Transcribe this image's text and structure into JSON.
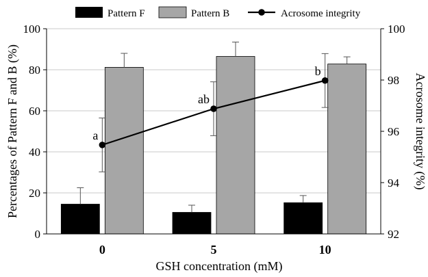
{
  "chart_data": {
    "type": "bar",
    "categories": [
      "0",
      "5",
      "10"
    ],
    "series": [
      {
        "name": "Pattern F",
        "values": [
          14.5,
          10.5,
          15.2
        ],
        "errors": [
          8.0,
          3.5,
          3.5
        ],
        "axis": "left",
        "color": "#000000"
      },
      {
        "name": "Pattern B",
        "values": [
          81.2,
          86.5,
          82.8
        ],
        "errors": [
          6.8,
          7.0,
          3.5
        ],
        "axis": "left",
        "color": "#a6a6a6"
      },
      {
        "name": "Acrosome integrity",
        "type": "line",
        "values": [
          95.47,
          96.88,
          97.98
        ],
        "errors": [
          1.05,
          1.05,
          1.05
        ],
        "axis": "right",
        "color": "#000000",
        "labels": [
          "a",
          "ab",
          "b"
        ]
      }
    ],
    "xlabel": "GSH concentration (mM)",
    "ylabel": "Percentages of Pattern F and B (%)",
    "ylabel_right": "Acrosome integrity (%)",
    "ylim": [
      0,
      100
    ],
    "ylim_right": [
      92,
      100
    ],
    "yticks": [
      "0",
      "20",
      "40",
      "60",
      "80",
      "100"
    ],
    "yticks_right": [
      "92",
      "94",
      "96",
      "98",
      "100"
    ],
    "grid": true,
    "legend": "top"
  }
}
